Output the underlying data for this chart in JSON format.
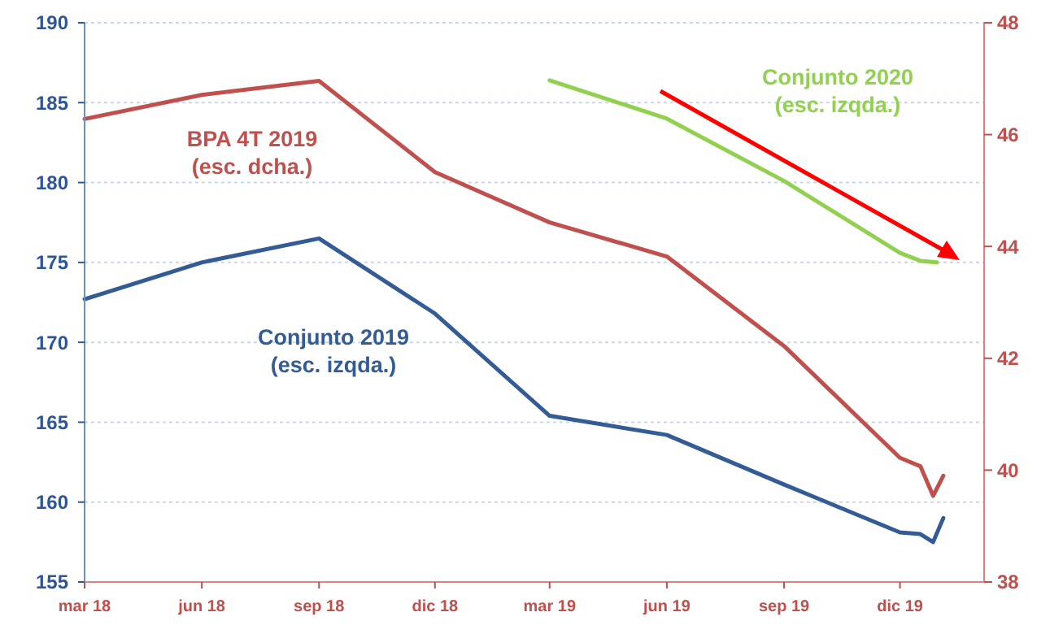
{
  "chart_data": {
    "type": "line",
    "xlim": [
      "2018-03-01",
      "2020-02-05"
    ],
    "xticks": [
      {
        "value": "2018-03-01",
        "label": "mar 18"
      },
      {
        "value": "2018-06-01",
        "label": "jun 18"
      },
      {
        "value": "2018-09-01",
        "label": "sep 18"
      },
      {
        "value": "2018-12-01",
        "label": "dic 18"
      },
      {
        "value": "2019-03-01",
        "label": "mar 19"
      },
      {
        "value": "2019-06-01",
        "label": "jun 19"
      },
      {
        "value": "2019-09-01",
        "label": "sep 19"
      },
      {
        "value": "2019-12-01",
        "label": "dic 19"
      }
    ],
    "ylim": [
      155,
      190
    ],
    "yticks": [
      155,
      160,
      165,
      170,
      175,
      180,
      185,
      190
    ],
    "y2lim": [
      38,
      48
    ],
    "y2ticks": [
      38,
      40,
      42,
      44,
      46,
      48
    ],
    "grid": "y",
    "series": [
      {
        "name": "Conjunto 2019 (esc. izqda.)",
        "color": "#335b96",
        "x": [
          "2018-03-01",
          "2018-06-01",
          "2018-09-01",
          "2018-12-01",
          "2019-03-01",
          "2019-06-01",
          "2019-09-01",
          "2019-12-01",
          "2019-12-17",
          "2019-12-27",
          "2020-01-04"
        ],
        "values": [
          172.7,
          175.0,
          176.5,
          171.8,
          165.4,
          164.2,
          161.1,
          158.1,
          158.0,
          157.5,
          159.0
        ]
      },
      {
        "name": "BPA 4T 2019 (esc. dcha.)",
        "color": "#c0504d",
        "axis": "y2",
        "x": [
          "2018-03-01",
          "2018-06-01",
          "2018-09-01",
          "2018-12-01",
          "2019-03-01",
          "2019-06-01",
          "2019-09-01",
          "2019-12-01",
          "2019-12-17",
          "2019-12-27",
          "2020-01-04"
        ],
        "values": [
          46.28,
          46.71,
          46.96,
          45.33,
          44.43,
          43.82,
          42.22,
          40.22,
          40.07,
          39.54,
          39.9
        ]
      },
      {
        "name": "Conjunto 2020 (esc. izqda.)",
        "color": "#92d050",
        "x": [
          "2019-03-01",
          "2019-06-01",
          "2019-09-01",
          "2019-12-01",
          "2019-12-17",
          "2019-12-30"
        ],
        "values": [
          186.4,
          184.0,
          180.1,
          175.6,
          175.1,
          175.0
        ]
      }
    ]
  }
}
